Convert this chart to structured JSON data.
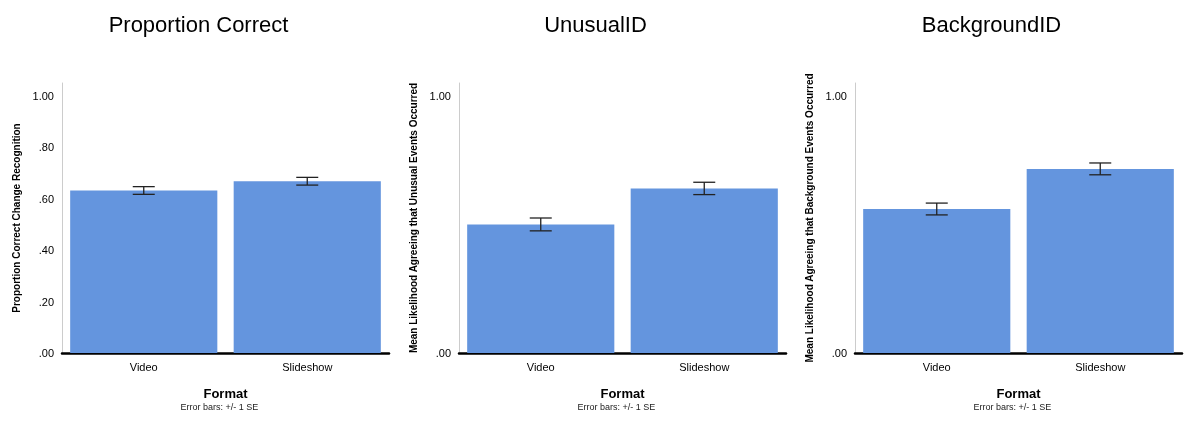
{
  "chart_data": [
    {
      "type": "bar",
      "title": "Proportion Correct",
      "xlabel": "Format",
      "ylabel": "Proportion Correct Change Recognition",
      "categories": [
        "Video",
        "Slideshow"
      ],
      "series": [
        {
          "color": "#6495de",
          "values": [
            0.632,
            0.668
          ],
          "errors": [
            0.015,
            0.015
          ]
        }
      ],
      "ylim": [
        0,
        1.05
      ],
      "yticks": [
        {
          "value": 0,
          "label": ".00"
        },
        {
          "value": 0.2,
          "label": ".20"
        },
        {
          "value": 0.4,
          "label": ".40"
        },
        {
          "value": 0.6,
          "label": ".60"
        },
        {
          "value": 0.8,
          "label": ".80"
        },
        {
          "value": 1,
          "label": "1.00"
        }
      ],
      "grid": false,
      "annotations": [
        "Error bars: +/- 1 SE"
      ]
    },
    {
      "type": "bar",
      "title": "UnusualID",
      "xlabel": "Format",
      "ylabel": "Mean Likelihood Agreeing that Unusual Events Occurred",
      "categories": [
        "Video",
        "Slideshow"
      ],
      "series": [
        {
          "color": "#6495de",
          "values": [
            0.5,
            0.64
          ],
          "errors": [
            0.025,
            0.024
          ]
        }
      ],
      "ylim": [
        0,
        1.05
      ],
      "yticks": [
        {
          "value": 0,
          "label": ".00"
        },
        {
          "value": 1,
          "label": "1.00"
        }
      ],
      "grid": false,
      "annotations": [
        "Error bars: +/- 1 SE"
      ]
    },
    {
      "type": "bar",
      "title": "BackgroundID",
      "xlabel": "Format",
      "ylabel": "Mean Likelihood Agreeing that Background Events Occurred",
      "categories": [
        "Video",
        "Slideshow"
      ],
      "series": [
        {
          "color": "#6495de",
          "values": [
            0.56,
            0.716
          ],
          "errors": [
            0.023,
            0.023
          ]
        }
      ],
      "ylim": [
        0,
        1.05
      ],
      "yticks": [
        {
          "value": 0,
          "label": ".00"
        },
        {
          "value": 1,
          "label": "1.00"
        }
      ],
      "grid": false,
      "annotations": [
        "Error bars: +/- 1 SE"
      ]
    }
  ]
}
